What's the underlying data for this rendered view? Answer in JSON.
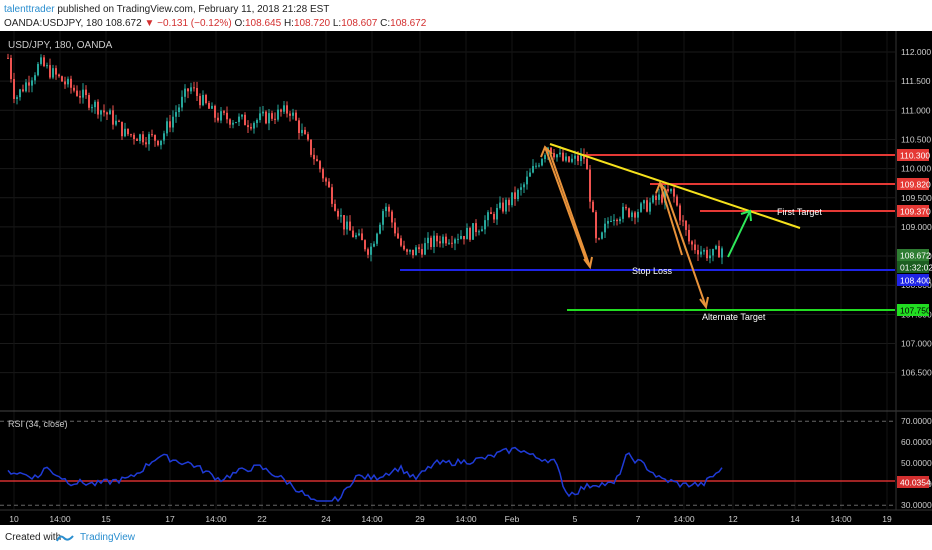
{
  "header": {
    "author": "talenttrader",
    "published_text": "published on TradingView.com, February 11, 2018 21:28 EST",
    "symbol_line": "OANDA:USDJPY, 180",
    "last": "108.672",
    "change": "−0.131 (−0.12%)",
    "open_label": "O:",
    "open": "108.645",
    "high_label": "H:",
    "high": "108.720",
    "low_label": "L:",
    "low": "108.607",
    "close_label": "C:",
    "close": "108.672"
  },
  "chart": {
    "symbol_title": "USD/JPY, 180, OANDA",
    "price_ticks": [
      "112.000",
      "111.500",
      "111.000",
      "110.500",
      "110.000",
      "109.500",
      "109.000",
      "108.500",
      "108.000",
      "107.500",
      "107.000",
      "106.500"
    ],
    "price_ticks_values": [
      112.0,
      111.5,
      111.0,
      110.5,
      110.0,
      109.5,
      109.0,
      108.5,
      108.0,
      107.5,
      107.0,
      106.5
    ],
    "levels": [
      {
        "price": 110.3,
        "label": "110.300",
        "color": "#e53935"
      },
      {
        "price": 109.82,
        "label": "109.820",
        "color": "#e53935"
      },
      {
        "price": 109.37,
        "label": "109.370",
        "color": "#e53935"
      },
      {
        "price": 108.4,
        "label": "108.400",
        "color": "#1e24e6"
      },
      {
        "price": 107.75,
        "label": "107.750",
        "color": "#22dd22"
      }
    ],
    "current_price_label": "108.672",
    "countdown_label": "01:32:02",
    "annotations": {
      "first_target": "First Target",
      "stop_loss": "Stop Loss",
      "alternate_target": "Alternate Target"
    },
    "colors": {
      "up": "#26a69a",
      "down": "#ef5350",
      "trendline": "#f5e11c",
      "arrow_orange": "#e8923a",
      "arrow_green": "#2ee85a"
    }
  },
  "rsi": {
    "title": "RSI (34, close)",
    "ticks": [
      "70.0000",
      "60.0000",
      "50.0000",
      "40.0000",
      "30.0000"
    ],
    "current_label": "40.0354",
    "line_color": "#1f3bd6"
  },
  "x_axis": {
    "labels": [
      "10",
      "14:00",
      "15",
      "17",
      "14:00",
      "22",
      "24",
      "14:00",
      "29",
      "14:00",
      "Feb",
      "5",
      "7",
      "14:00",
      "12",
      "14",
      "14:00",
      "19"
    ]
  },
  "footer": {
    "created_with": "Created with",
    "brand": "TradingView"
  },
  "chart_data": {
    "type": "candlestick",
    "title": "USD/JPY, 180, OANDA",
    "ylim": [
      106.2,
      112.3
    ],
    "horizontal_levels": [
      110.3,
      109.82,
      109.37,
      108.4,
      107.75
    ],
    "trendline": [
      {
        "x": "Feb 2",
        "y": 110.48
      },
      {
        "x": "Feb 12",
        "y": 109.12
      }
    ],
    "rsi": {
      "period": 34,
      "ylim": [
        28,
        72
      ],
      "levels": [
        70,
        40,
        30
      ],
      "current": 40.0354
    }
  }
}
